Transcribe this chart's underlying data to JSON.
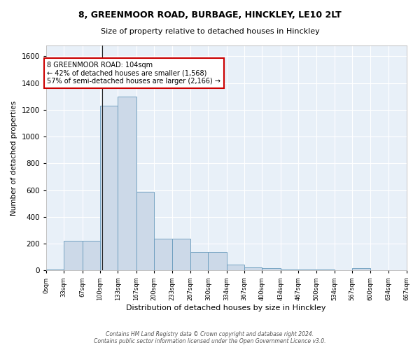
{
  "title1": "8, GREENMOOR ROAD, BURBAGE, HINCKLEY, LE10 2LT",
  "title2": "Size of property relative to detached houses in Hinckley",
  "xlabel": "Distribution of detached houses by size in Hinckley",
  "ylabel": "Number of detached properties",
  "footer1": "Contains HM Land Registry data © Crown copyright and database right 2024.",
  "footer2": "Contains public sector information licensed under the Open Government Licence v3.0.",
  "annotation_line1": "8 GREENMOOR ROAD: 104sqm",
  "annotation_line2": "← 42% of detached houses are smaller (1,568)",
  "annotation_line3": "57% of semi-detached houses are larger (2,166) →",
  "bar_color": "#ccd9e8",
  "bar_edge_color": "#6699bb",
  "marker_line_color": "#222222",
  "annotation_box_edge": "#cc0000",
  "annotation_box_fill": "#ffffff",
  "background_color": "#e8f0f8",
  "fig_background_color": "#ffffff",
  "grid_color": "#ffffff",
  "property_size": 104,
  "bin_edges": [
    0,
    33,
    67,
    100,
    133,
    167,
    200,
    233,
    267,
    300,
    334,
    367,
    400,
    434,
    467,
    500,
    534,
    567,
    600,
    634,
    667
  ],
  "bin_labels": [
    "0sqm",
    "33sqm",
    "67sqm",
    "100sqm",
    "133sqm",
    "167sqm",
    "200sqm",
    "233sqm",
    "267sqm",
    "300sqm",
    "334sqm",
    "367sqm",
    "400sqm",
    "434sqm",
    "467sqm",
    "500sqm",
    "534sqm",
    "567sqm",
    "600sqm",
    "634sqm",
    "667sqm"
  ],
  "bar_heights": [
    10,
    220,
    220,
    1230,
    1300,
    590,
    235,
    235,
    140,
    140,
    45,
    25,
    20,
    10,
    10,
    10,
    0,
    20,
    0,
    0
  ],
  "ylim": [
    0,
    1680
  ],
  "yticks": [
    0,
    200,
    400,
    600,
    800,
    1000,
    1200,
    1400,
    1600
  ]
}
